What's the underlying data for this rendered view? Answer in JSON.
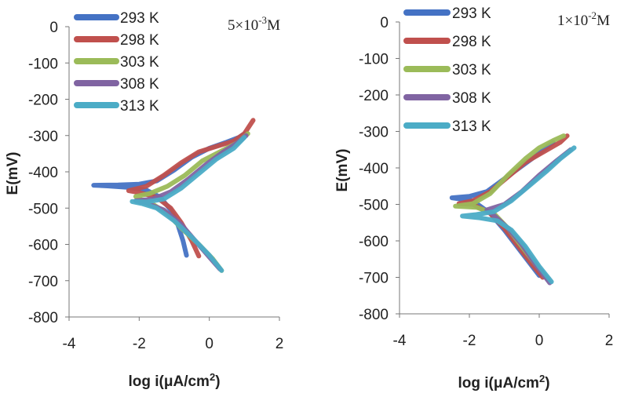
{
  "chart_data": [
    {
      "type": "line",
      "annotation": {
        "base": "5×10",
        "exp": "-3",
        "unit": "M"
      },
      "xlabel": {
        "base": "log i(μA/cm",
        "exp": "2",
        "tail": ")"
      },
      "ylabel": "E(mV)",
      "xlim": [
        -4,
        2
      ],
      "ylim": [
        -800,
        0
      ],
      "xticks": [
        -4,
        -2,
        0,
        2
      ],
      "yticks": [
        0,
        -100,
        -200,
        -300,
        -400,
        -500,
        -600,
        -700,
        -800
      ],
      "legend_position": "top-left",
      "series": [
        {
          "name": "293 K",
          "color": "#4472C4",
          "x": [
            -0.65,
            -0.75,
            -0.9,
            -1.1,
            -1.4,
            -1.8,
            -2.3,
            -2.9,
            -3.3,
            -2.6,
            -2.0,
            -1.5,
            -1.0,
            -0.5,
            0.0,
            0.5,
            0.85,
            1.0
          ],
          "y": [
            -630,
            -590,
            -545,
            -505,
            -470,
            -450,
            -443,
            -439,
            -437,
            -436,
            -434,
            -425,
            -395,
            -360,
            -335,
            -318,
            -305,
            -295
          ]
        },
        {
          "name": "298 K",
          "color": "#C0504D",
          "x": [
            -0.3,
            -0.5,
            -0.8,
            -1.1,
            -1.5,
            -2.0,
            -2.3,
            -1.8,
            -1.3,
            -0.8,
            -0.3,
            0.2,
            0.7,
            1.0,
            1.25
          ],
          "y": [
            -632,
            -590,
            -540,
            -500,
            -470,
            -457,
            -452,
            -440,
            -410,
            -375,
            -345,
            -330,
            -315,
            -295,
            -258
          ]
        },
        {
          "name": "303 K",
          "color": "#9BBB59",
          "x": [
            0.35,
            0.1,
            -0.3,
            -0.8,
            -1.2,
            -1.6,
            -2.0,
            -2.1,
            -1.7,
            -1.2,
            -0.7,
            -0.2,
            0.3,
            0.8,
            1.1
          ],
          "y": [
            -672,
            -640,
            -600,
            -555,
            -515,
            -490,
            -475,
            -468,
            -460,
            -440,
            -410,
            -370,
            -345,
            -320,
            -295
          ]
        },
        {
          "name": "308 K",
          "color": "#8064A2",
          "x": [
            0.3,
            0.0,
            -0.4,
            -0.8,
            -1.3,
            -1.8,
            -2.1,
            -1.6,
            -1.1,
            -0.6,
            -0.1,
            0.4,
            0.8,
            1.05
          ],
          "y": [
            -668,
            -635,
            -590,
            -545,
            -505,
            -486,
            -480,
            -475,
            -455,
            -420,
            -380,
            -345,
            -320,
            -300
          ]
        },
        {
          "name": "313 K",
          "color": "#4BACC6",
          "x": [
            0.35,
            0.0,
            -0.5,
            -1.0,
            -1.5,
            -1.9,
            -2.2,
            -1.8,
            -1.3,
            -0.8,
            -0.3,
            0.2,
            0.7,
            1.0
          ],
          "y": [
            -672,
            -630,
            -580,
            -535,
            -500,
            -488,
            -482,
            -483,
            -475,
            -445,
            -405,
            -365,
            -335,
            -305
          ]
        }
      ]
    },
    {
      "type": "line",
      "annotation": {
        "base": "1×10",
        "exp": "-2",
        "unit": "M"
      },
      "xlabel": {
        "base": "log i(μA/cm",
        "exp": "2",
        "tail": ")"
      },
      "ylabel": "E(mV)",
      "xlim": [
        -4,
        2
      ],
      "ylim": [
        -800,
        0
      ],
      "xticks": [
        -4,
        -2,
        0,
        2
      ],
      "yticks": [
        0,
        -100,
        -200,
        -300,
        -400,
        -500,
        -600,
        -700,
        -800
      ],
      "legend_position": "top-left",
      "series": [
        {
          "name": "293 K",
          "color": "#4472C4",
          "x": [
            0.0,
            -0.2,
            -0.6,
            -1.0,
            -1.4,
            -1.9,
            -2.5,
            -2.0,
            -1.5,
            -1.0,
            -0.5,
            0.0,
            0.4
          ],
          "y": [
            -695,
            -670,
            -620,
            -570,
            -525,
            -490,
            -482,
            -478,
            -465,
            -430,
            -395,
            -360,
            -330
          ]
        },
        {
          "name": "298 K",
          "color": "#C0504D",
          "x": [
            0.1,
            -0.2,
            -0.6,
            -1.0,
            -1.4,
            -1.9,
            -2.3,
            -1.9,
            -1.4,
            -0.9,
            -0.4,
            0.2,
            0.6,
            0.8
          ],
          "y": [
            -700,
            -665,
            -615,
            -565,
            -525,
            -500,
            -498,
            -490,
            -465,
            -425,
            -385,
            -352,
            -330,
            -312
          ]
        },
        {
          "name": "303 K",
          "color": "#9BBB59",
          "x": [
            0.25,
            -0.1,
            -0.5,
            -0.9,
            -1.3,
            -1.8,
            -2.4,
            -1.9,
            -1.4,
            -0.9,
            -0.4,
            0.0,
            0.4,
            0.7
          ],
          "y": [
            -705,
            -665,
            -615,
            -565,
            -525,
            -508,
            -505,
            -498,
            -470,
            -420,
            -375,
            -345,
            -325,
            -312
          ]
        },
        {
          "name": "308 K",
          "color": "#8064A2",
          "x": [
            0.3,
            -0.1,
            -0.5,
            -0.9,
            -1.3,
            -1.5,
            -1.0,
            -0.5,
            0.0,
            0.5,
            0.9
          ],
          "y": [
            -715,
            -665,
            -610,
            -565,
            -530,
            -515,
            -500,
            -465,
            -420,
            -380,
            -350
          ]
        },
        {
          "name": "313 K",
          "color": "#4BACC6",
          "x": [
            0.35,
            0.0,
            -0.4,
            -0.8,
            -1.2,
            -1.7,
            -2.2,
            -1.8,
            -1.3,
            -0.8,
            -0.3,
            0.2,
            0.6,
            1.0
          ],
          "y": [
            -712,
            -670,
            -615,
            -570,
            -545,
            -537,
            -532,
            -528,
            -520,
            -490,
            -450,
            -410,
            -375,
            -345
          ]
        }
      ]
    }
  ]
}
